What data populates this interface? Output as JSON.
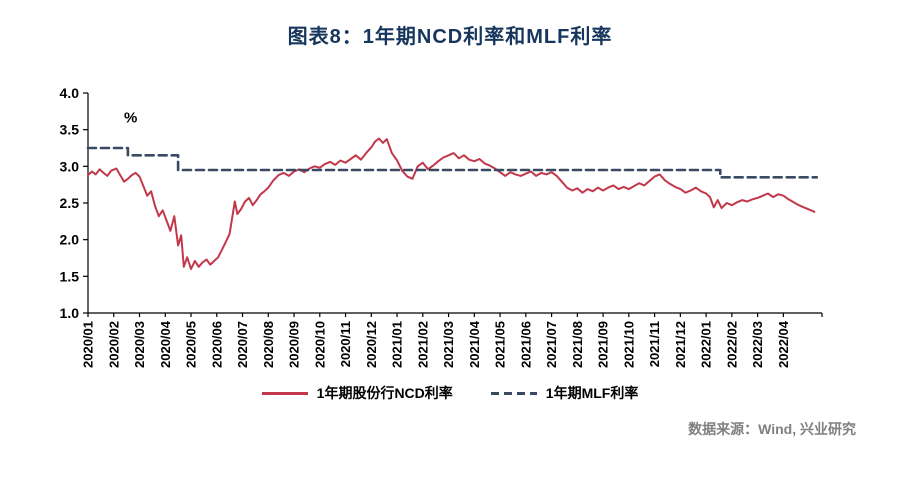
{
  "chart_data": {
    "type": "line",
    "title": "图表8：1年期NCD利率和MLF利率",
    "title_color": "#17365D",
    "unit": "%",
    "ylim": [
      1.0,
      4.0
    ],
    "y_ticks": [
      1.0,
      1.5,
      2.0,
      2.5,
      3.0,
      3.5,
      4.0
    ],
    "x_max": 28.5,
    "grid": false,
    "legend_position": "bottom",
    "categories": [
      "2020/01",
      "2020/02",
      "2020/03",
      "2020/04",
      "2020/05",
      "2020/06",
      "2020/07",
      "2020/08",
      "2020/09",
      "2020/10",
      "2020/11",
      "2020/12",
      "2021/01",
      "2021/02",
      "2021/03",
      "2021/04",
      "2021/05",
      "2021/06",
      "2021/07",
      "2021/08",
      "2021/09",
      "2021/10",
      "2021/11",
      "2021/12",
      "2022/01",
      "2022/02",
      "2022/03",
      "2022/04"
    ],
    "series": [
      {
        "id": "ncd",
        "name": "1年期股份行NCD利率",
        "color": "#C2384A",
        "width": 2,
        "style": "solid",
        "points": [
          [
            0.0,
            2.88
          ],
          [
            0.15,
            2.93
          ],
          [
            0.3,
            2.89
          ],
          [
            0.45,
            2.96
          ],
          [
            0.6,
            2.91
          ],
          [
            0.75,
            2.87
          ],
          [
            0.9,
            2.94
          ],
          [
            1.1,
            2.97
          ],
          [
            1.25,
            2.88
          ],
          [
            1.4,
            2.79
          ],
          [
            1.55,
            2.83
          ],
          [
            1.7,
            2.88
          ],
          [
            1.85,
            2.91
          ],
          [
            2.0,
            2.86
          ],
          [
            2.15,
            2.73
          ],
          [
            2.3,
            2.6
          ],
          [
            2.45,
            2.66
          ],
          [
            2.6,
            2.46
          ],
          [
            2.75,
            2.32
          ],
          [
            2.9,
            2.4
          ],
          [
            3.05,
            2.26
          ],
          [
            3.2,
            2.12
          ],
          [
            3.35,
            2.32
          ],
          [
            3.5,
            1.92
          ],
          [
            3.62,
            2.06
          ],
          [
            3.72,
            1.63
          ],
          [
            3.85,
            1.76
          ],
          [
            4.0,
            1.6
          ],
          [
            4.15,
            1.71
          ],
          [
            4.3,
            1.63
          ],
          [
            4.45,
            1.69
          ],
          [
            4.6,
            1.73
          ],
          [
            4.75,
            1.66
          ],
          [
            4.9,
            1.71
          ],
          [
            5.05,
            1.76
          ],
          [
            5.2,
            1.86
          ],
          [
            5.35,
            1.97
          ],
          [
            5.5,
            2.08
          ],
          [
            5.6,
            2.3
          ],
          [
            5.7,
            2.52
          ],
          [
            5.8,
            2.35
          ],
          [
            5.95,
            2.42
          ],
          [
            6.1,
            2.52
          ],
          [
            6.25,
            2.57
          ],
          [
            6.4,
            2.47
          ],
          [
            6.55,
            2.54
          ],
          [
            6.7,
            2.62
          ],
          [
            6.85,
            2.66
          ],
          [
            7.0,
            2.71
          ],
          [
            7.2,
            2.81
          ],
          [
            7.4,
            2.88
          ],
          [
            7.6,
            2.91
          ],
          [
            7.8,
            2.87
          ],
          [
            8.0,
            2.93
          ],
          [
            8.2,
            2.96
          ],
          [
            8.4,
            2.92
          ],
          [
            8.6,
            2.97
          ],
          [
            8.8,
            3.0
          ],
          [
            9.0,
            2.98
          ],
          [
            9.2,
            3.03
          ],
          [
            9.4,
            3.06
          ],
          [
            9.6,
            3.02
          ],
          [
            9.8,
            3.08
          ],
          [
            10.0,
            3.05
          ],
          [
            10.2,
            3.1
          ],
          [
            10.4,
            3.15
          ],
          [
            10.6,
            3.09
          ],
          [
            10.8,
            3.18
          ],
          [
            11.0,
            3.26
          ],
          [
            11.15,
            3.34
          ],
          [
            11.3,
            3.38
          ],
          [
            11.45,
            3.32
          ],
          [
            11.6,
            3.37
          ],
          [
            11.8,
            3.18
          ],
          [
            12.0,
            3.08
          ],
          [
            12.2,
            2.94
          ],
          [
            12.4,
            2.86
          ],
          [
            12.6,
            2.83
          ],
          [
            12.8,
            3.0
          ],
          [
            13.0,
            3.05
          ],
          [
            13.2,
            2.96
          ],
          [
            13.4,
            3.01
          ],
          [
            13.6,
            3.07
          ],
          [
            13.8,
            3.12
          ],
          [
            14.0,
            3.15
          ],
          [
            14.2,
            3.18
          ],
          [
            14.4,
            3.11
          ],
          [
            14.6,
            3.15
          ],
          [
            14.8,
            3.09
          ],
          [
            15.0,
            3.07
          ],
          [
            15.2,
            3.1
          ],
          [
            15.4,
            3.04
          ],
          [
            15.6,
            3.01
          ],
          [
            15.8,
            2.97
          ],
          [
            16.0,
            2.92
          ],
          [
            16.2,
            2.87
          ],
          [
            16.4,
            2.92
          ],
          [
            16.6,
            2.89
          ],
          [
            16.8,
            2.87
          ],
          [
            17.0,
            2.9
          ],
          [
            17.2,
            2.93
          ],
          [
            17.4,
            2.87
          ],
          [
            17.6,
            2.91
          ],
          [
            17.8,
            2.89
          ],
          [
            18.0,
            2.92
          ],
          [
            18.2,
            2.87
          ],
          [
            18.4,
            2.79
          ],
          [
            18.6,
            2.71
          ],
          [
            18.8,
            2.67
          ],
          [
            19.0,
            2.7
          ],
          [
            19.2,
            2.64
          ],
          [
            19.4,
            2.69
          ],
          [
            19.6,
            2.66
          ],
          [
            19.8,
            2.71
          ],
          [
            20.0,
            2.67
          ],
          [
            20.2,
            2.71
          ],
          [
            20.4,
            2.74
          ],
          [
            20.6,
            2.69
          ],
          [
            20.8,
            2.72
          ],
          [
            21.0,
            2.69
          ],
          [
            21.2,
            2.73
          ],
          [
            21.4,
            2.77
          ],
          [
            21.6,
            2.74
          ],
          [
            21.8,
            2.8
          ],
          [
            22.0,
            2.86
          ],
          [
            22.2,
            2.89
          ],
          [
            22.4,
            2.81
          ],
          [
            22.6,
            2.76
          ],
          [
            22.8,
            2.72
          ],
          [
            23.0,
            2.69
          ],
          [
            23.2,
            2.64
          ],
          [
            23.4,
            2.67
          ],
          [
            23.6,
            2.71
          ],
          [
            23.8,
            2.66
          ],
          [
            24.0,
            2.63
          ],
          [
            24.15,
            2.58
          ],
          [
            24.3,
            2.44
          ],
          [
            24.45,
            2.54
          ],
          [
            24.6,
            2.43
          ],
          [
            24.8,
            2.5
          ],
          [
            25.0,
            2.47
          ],
          [
            25.2,
            2.51
          ],
          [
            25.4,
            2.54
          ],
          [
            25.6,
            2.52
          ],
          [
            25.8,
            2.55
          ],
          [
            26.0,
            2.57
          ],
          [
            26.2,
            2.6
          ],
          [
            26.4,
            2.63
          ],
          [
            26.6,
            2.58
          ],
          [
            26.8,
            2.62
          ],
          [
            27.0,
            2.6
          ],
          [
            27.2,
            2.55
          ],
          [
            27.4,
            2.51
          ],
          [
            27.6,
            2.47
          ],
          [
            27.8,
            2.44
          ],
          [
            28.0,
            2.41
          ],
          [
            28.2,
            2.38
          ]
        ]
      },
      {
        "id": "mlf",
        "name": "1年期MLF利率",
        "color": "#3B4A63",
        "width": 2.6,
        "style": "dashed",
        "dash": "8 5",
        "points": [
          [
            0.0,
            3.25
          ],
          [
            1.55,
            3.25
          ],
          [
            1.55,
            3.15
          ],
          [
            3.5,
            3.15
          ],
          [
            3.5,
            2.95
          ],
          [
            24.55,
            2.95
          ],
          [
            24.55,
            2.85
          ],
          [
            28.3,
            2.85
          ]
        ]
      }
    ]
  },
  "footer": {
    "source": "数据来源：Wind, 兴业研究"
  }
}
